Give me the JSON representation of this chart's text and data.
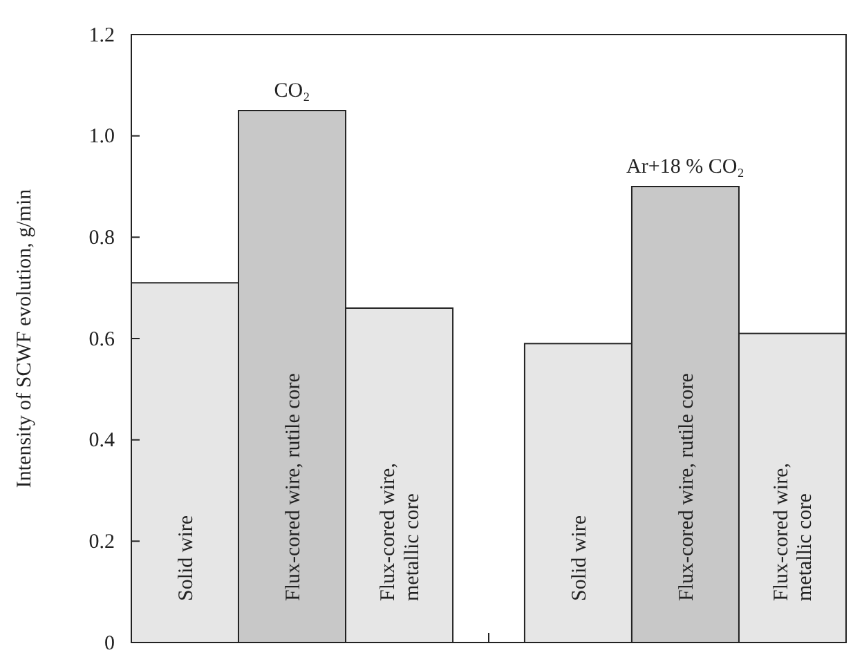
{
  "chart_data": {
    "type": "bar",
    "ylabel": "Intensity of SCWF evolution, g/min",
    "categories": [
      "Solid wire",
      "Flux-cored wire, rutile core",
      "Flux-cored wire, metallic core",
      null,
      "Solid wire",
      "Flux-cored wire, rutile core",
      "Flux-cored wire, metallic core"
    ],
    "values": [
      0.71,
      1.05,
      0.66,
      null,
      0.59,
      0.9,
      0.61
    ],
    "colors": [
      "#e6e6e6",
      "#c8c8c8",
      "#e6e6e6",
      null,
      "#e6e6e6",
      "#c8c8c8",
      "#e6e6e6"
    ],
    "ylim": [
      0,
      1.2
    ],
    "yticks": [
      0,
      0.2,
      0.4,
      0.6,
      0.8,
      {
        "value": 1,
        "label": "1.0"
      },
      1.2
    ],
    "annotations": [
      "CO₂",
      "Ar+18 % CO₂"
    ],
    "grid": false
  }
}
